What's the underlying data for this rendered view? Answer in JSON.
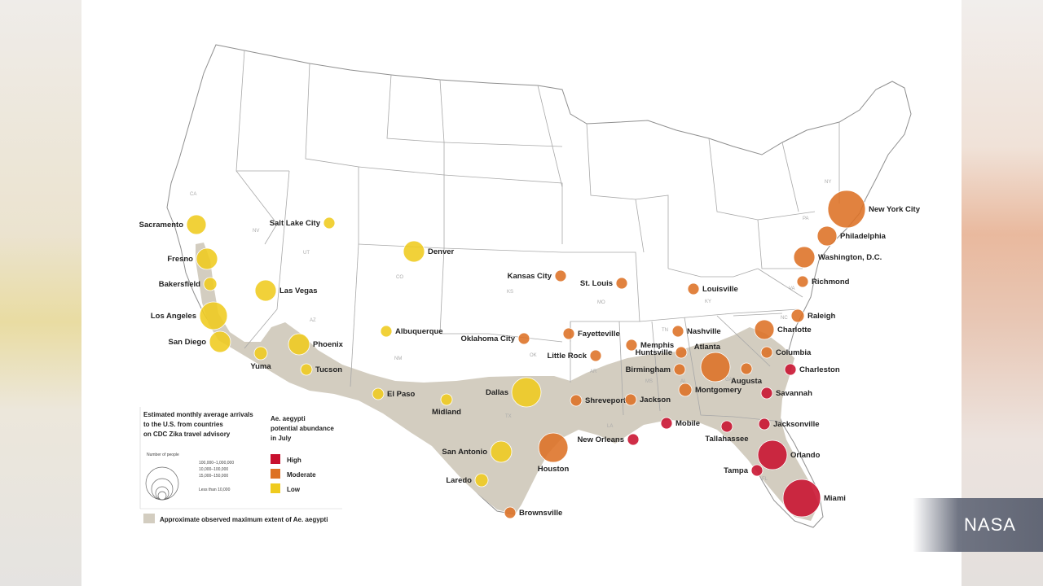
{
  "colors": {
    "high": "#c8102e",
    "moderate": "#dd7124",
    "low": "#efcb1e",
    "extent": "#d3cdc0",
    "state_line": "#9a9a9a"
  },
  "legend": {
    "arrivals_title": "Estimated monthly average arrivals to the U.S. from countries on CDC Zika travel advisory",
    "number_of_people_label": "Number of people",
    "size_classes": [
      "100,000–1,000,000",
      "10,000–100,000",
      "15,000–150,000",
      "Less than 10,000"
    ],
    "abundance_title": "Ae. aegypti potential abundance in July",
    "abundance_levels": [
      {
        "key": "high",
        "label": "High"
      },
      {
        "key": "moderate",
        "label": "Moderate"
      },
      {
        "key": "low",
        "label": "Low"
      }
    ],
    "extent_label": "Approximate observed maximum extent of Ae. aegypti"
  },
  "states": [
    "CA",
    "NV",
    "UT",
    "CO",
    "AZ",
    "NM",
    "TX",
    "OK",
    "KS",
    "MO",
    "AR",
    "LA",
    "MS",
    "AL",
    "GA",
    "FL",
    "SC",
    "NC",
    "TN",
    "KY",
    "VA",
    "NY",
    "PA"
  ],
  "cities": [
    {
      "name": "Sacramento",
      "level": "low",
      "size": 2
    },
    {
      "name": "Fresno",
      "level": "low",
      "size": 2
    },
    {
      "name": "Bakersfield",
      "level": "low",
      "size": 1
    },
    {
      "name": "Los Angeles",
      "level": "low",
      "size": 3
    },
    {
      "name": "San Diego",
      "level": "low",
      "size": 2
    },
    {
      "name": "Salt Lake City",
      "level": "low",
      "size": 1
    },
    {
      "name": "Las Vegas",
      "level": "low",
      "size": 2
    },
    {
      "name": "Denver",
      "level": "low",
      "size": 2
    },
    {
      "name": "Phoenix",
      "level": "low",
      "size": 2
    },
    {
      "name": "Tucson",
      "level": "low",
      "size": 1
    },
    {
      "name": "Yuma",
      "level": "low",
      "size": 1
    },
    {
      "name": "Albuquerque",
      "level": "low",
      "size": 1
    },
    {
      "name": "El Paso",
      "level": "low",
      "size": 1
    },
    {
      "name": "Midland",
      "level": "low",
      "size": 1
    },
    {
      "name": "Dallas",
      "level": "low",
      "size": 3
    },
    {
      "name": "San Antonio",
      "level": "low",
      "size": 2
    },
    {
      "name": "Laredo",
      "level": "low",
      "size": 1
    },
    {
      "name": "Brownsville",
      "level": "moderate",
      "size": 1
    },
    {
      "name": "Houston",
      "level": "moderate",
      "size": 3
    },
    {
      "name": "Shreveport",
      "level": "moderate",
      "size": 1
    },
    {
      "name": "Jackson",
      "level": "moderate",
      "size": 1
    },
    {
      "name": "Oklahoma City",
      "level": "moderate",
      "size": 1
    },
    {
      "name": "Kansas City",
      "level": "moderate",
      "size": 1
    },
    {
      "name": "St. Louis",
      "level": "moderate",
      "size": 1
    },
    {
      "name": "Fayetteville",
      "level": "moderate",
      "size": 1
    },
    {
      "name": "Little Rock",
      "level": "moderate",
      "size": 1
    },
    {
      "name": "Memphis",
      "level": "moderate",
      "size": 1
    },
    {
      "name": "Nashville",
      "level": "moderate",
      "size": 1
    },
    {
      "name": "Huntsville",
      "level": "moderate",
      "size": 1
    },
    {
      "name": "Birmingham",
      "level": "moderate",
      "size": 1
    },
    {
      "name": "Louisville",
      "level": "moderate",
      "size": 1
    },
    {
      "name": "Atlanta",
      "level": "moderate",
      "size": 3
    },
    {
      "name": "Montgomery",
      "level": "moderate",
      "size": 1
    },
    {
      "name": "Augusta",
      "level": "moderate",
      "size": 1
    },
    {
      "name": "Columbia",
      "level": "moderate",
      "size": 1
    },
    {
      "name": "Charlotte",
      "level": "moderate",
      "size": 2
    },
    {
      "name": "Raleigh",
      "level": "moderate",
      "size": 1
    },
    {
      "name": "Richmond",
      "level": "moderate",
      "size": 1
    },
    {
      "name": "Washington, D.C.",
      "level": "moderate",
      "size": 2
    },
    {
      "name": "Philadelphia",
      "level": "moderate",
      "size": 2
    },
    {
      "name": "New York City",
      "level": "moderate",
      "size": 4
    },
    {
      "name": "New Orleans",
      "level": "high",
      "size": 1
    },
    {
      "name": "Mobile",
      "level": "high",
      "size": 1
    },
    {
      "name": "Tallahassee",
      "level": "high",
      "size": 1
    },
    {
      "name": "Jacksonville",
      "level": "high",
      "size": 1
    },
    {
      "name": "Savannah",
      "level": "high",
      "size": 1
    },
    {
      "name": "Charleston",
      "level": "high",
      "size": 1
    },
    {
      "name": "Orlando",
      "level": "high",
      "size": 3
    },
    {
      "name": "Tampa",
      "level": "high",
      "size": 1
    },
    {
      "name": "Miami",
      "level": "high",
      "size": 4
    }
  ],
  "watermark": "NASA"
}
